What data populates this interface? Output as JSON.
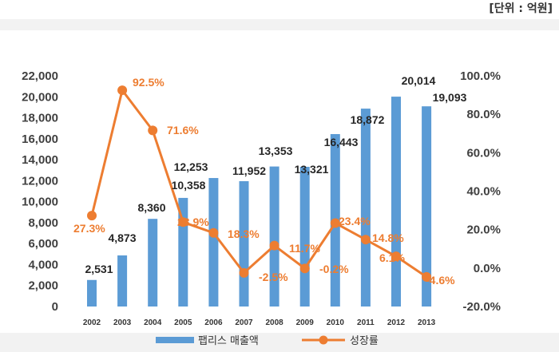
{
  "unit_label": "[단위 : 억원]",
  "chart_data": {
    "type": "bar",
    "categories": [
      "2002",
      "2003",
      "2004",
      "2005",
      "2006",
      "2007",
      "2008",
      "2009",
      "2010",
      "2011",
      "2012",
      "2013"
    ],
    "series": [
      {
        "name": "팹리스 매출액",
        "type": "bar",
        "axis": "left",
        "color": "#5b9bd5",
        "values": [
          2531,
          4873,
          8360,
          10358,
          12253,
          11952,
          13353,
          13321,
          16443,
          18872,
          20014,
          19093
        ],
        "labels": [
          "2,531",
          "4,873",
          "8,360",
          "10,358",
          "12,253",
          "11,952",
          "13,353",
          "13,321",
          "16,443",
          "18,872",
          "20,014",
          "19,093"
        ]
      },
      {
        "name": "성장률",
        "type": "line",
        "axis": "right",
        "color": "#ed7d31",
        "values": [
          27.3,
          92.5,
          71.6,
          23.9,
          18.3,
          -2.5,
          11.7,
          -0.2,
          23.4,
          14.8,
          6.1,
          -4.6
        ],
        "labels": [
          "27.3%",
          "92.5%",
          "71.6%",
          "23.9%",
          "18.3%",
          "-2.5%",
          "11.7%",
          "-0.2%",
          "23.4%",
          "14.8%",
          "6.1%",
          "-4.6%"
        ]
      }
    ],
    "y_left": {
      "ylim": [
        0,
        22000
      ],
      "ticks": [
        "0",
        "2,000",
        "4,000",
        "6,000",
        "8,000",
        "10,000",
        "12,000",
        "14,000",
        "16,000",
        "18,000",
        "20,000",
        "22,000"
      ]
    },
    "y_right": {
      "ylim": [
        -20,
        100
      ],
      "ticks": [
        "-20.0%",
        "0.0%",
        "20.0%",
        "40.0%",
        "60.0%",
        "80.0%",
        "100.0%"
      ]
    },
    "grid": false,
    "legend_position": "bottom"
  }
}
